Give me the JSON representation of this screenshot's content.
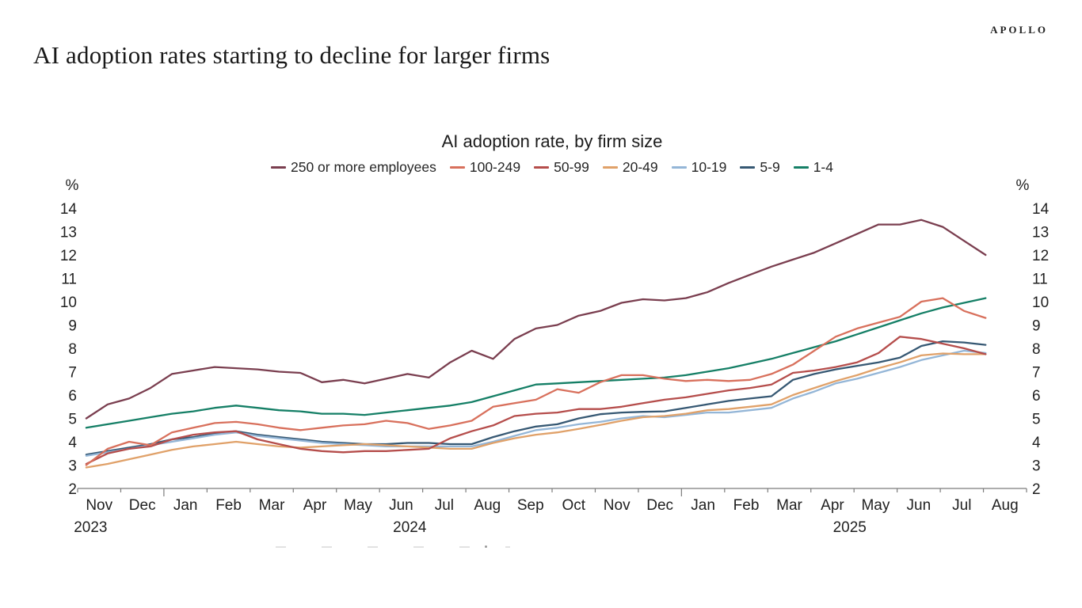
{
  "header": {
    "headline": "AI adoption rates starting to decline for larger firms",
    "brand": "APOLLO"
  },
  "chart_data": {
    "type": "line",
    "title": "AI adoption rate, by firm size",
    "unit": "%",
    "ylim": [
      2,
      14
    ],
    "ytick_step": 1,
    "grid": false,
    "legend_position": "top",
    "x_axis": {
      "months": [
        "Nov",
        "Dec",
        "Jan",
        "Feb",
        "Mar",
        "Apr",
        "May",
        "Jun",
        "Jul",
        "Aug",
        "Sep",
        "Oct",
        "Nov",
        "Dec",
        "Jan",
        "Feb",
        "Mar",
        "Apr",
        "May",
        "Jun",
        "Jul",
        "Aug"
      ],
      "year_labels": [
        {
          "text": "2023",
          "slot": 0.3
        },
        {
          "text": "2024",
          "slot": 7.7
        },
        {
          "text": "2025",
          "slot": 17.9
        }
      ],
      "range_note": "biweekly data, Nov 2023 through late Jul 2025"
    },
    "series": [
      {
        "name": "250 or more employees",
        "color": "#7A3E4F",
        "values": [
          5.0,
          5.6,
          5.85,
          6.3,
          6.9,
          7.05,
          7.2,
          7.15,
          7.1,
          7.0,
          6.95,
          6.55,
          6.65,
          6.5,
          6.7,
          6.9,
          6.75,
          7.4,
          7.9,
          7.55,
          8.4,
          8.85,
          9.0,
          9.4,
          9.6,
          9.95,
          10.1,
          10.05,
          10.15,
          10.4,
          10.8,
          11.15,
          11.5,
          11.8,
          12.1,
          12.5,
          12.9,
          13.3,
          13.3,
          13.5,
          13.2,
          12.6,
          12.0
        ]
      },
      {
        "name": "100-249",
        "color": "#D8705C",
        "values": [
          3.0,
          3.7,
          4.0,
          3.85,
          4.4,
          4.6,
          4.8,
          4.85,
          4.75,
          4.6,
          4.5,
          4.6,
          4.7,
          4.75,
          4.9,
          4.8,
          4.55,
          4.7,
          4.9,
          5.5,
          5.65,
          5.8,
          6.25,
          6.1,
          6.55,
          6.85,
          6.85,
          6.7,
          6.6,
          6.65,
          6.6,
          6.65,
          6.9,
          7.3,
          7.9,
          8.5,
          8.85,
          9.1,
          9.35,
          10.0,
          10.15,
          9.6,
          9.3
        ]
      },
      {
        "name": "50-99",
        "color": "#B54D4B",
        "values": [
          3.05,
          3.5,
          3.7,
          3.8,
          4.1,
          4.3,
          4.4,
          4.45,
          4.1,
          3.9,
          3.7,
          3.6,
          3.55,
          3.6,
          3.6,
          3.65,
          3.7,
          4.15,
          4.45,
          4.7,
          5.1,
          5.2,
          5.25,
          5.4,
          5.4,
          5.5,
          5.65,
          5.8,
          5.9,
          6.05,
          6.2,
          6.3,
          6.45,
          6.95,
          7.05,
          7.2,
          7.4,
          7.8,
          8.5,
          8.4,
          8.2,
          8.0,
          7.75
        ]
      },
      {
        "name": "20-49",
        "color": "#E0A169",
        "values": [
          2.9,
          3.05,
          3.25,
          3.45,
          3.65,
          3.8,
          3.9,
          4.0,
          3.9,
          3.8,
          3.75,
          3.8,
          3.85,
          3.9,
          3.85,
          3.8,
          3.75,
          3.7,
          3.7,
          3.95,
          4.15,
          4.3,
          4.4,
          4.55,
          4.72,
          4.9,
          5.05,
          5.1,
          5.2,
          5.35,
          5.4,
          5.5,
          5.6,
          6.0,
          6.3,
          6.6,
          6.85,
          7.15,
          7.4,
          7.7,
          7.78,
          7.75,
          7.75
        ]
      },
      {
        "name": "10-19",
        "color": "#94B6D7",
        "values": [
          3.4,
          3.55,
          3.7,
          3.85,
          4.0,
          4.15,
          4.3,
          4.4,
          4.25,
          4.15,
          4.05,
          3.95,
          3.9,
          3.85,
          3.8,
          3.8,
          3.8,
          3.8,
          3.8,
          4.0,
          4.25,
          4.5,
          4.6,
          4.75,
          4.85,
          5.0,
          5.1,
          5.05,
          5.15,
          5.25,
          5.25,
          5.35,
          5.45,
          5.85,
          6.15,
          6.5,
          6.7,
          6.95,
          7.2,
          7.5,
          7.7,
          7.9,
          7.8
        ]
      },
      {
        "name": "5-9",
        "color": "#365873",
        "values": [
          3.45,
          3.6,
          3.75,
          3.9,
          4.1,
          4.2,
          4.35,
          4.45,
          4.3,
          4.2,
          4.1,
          4.0,
          3.95,
          3.9,
          3.9,
          3.95,
          3.95,
          3.9,
          3.9,
          4.2,
          4.45,
          4.65,
          4.75,
          5.0,
          5.18,
          5.25,
          5.28,
          5.3,
          5.45,
          5.6,
          5.75,
          5.85,
          5.95,
          6.65,
          6.9,
          7.1,
          7.25,
          7.4,
          7.6,
          8.1,
          8.3,
          8.25,
          8.15
        ]
      },
      {
        "name": "1-4",
        "color": "#157F66",
        "values": [
          4.6,
          4.75,
          4.9,
          5.05,
          5.2,
          5.3,
          5.45,
          5.55,
          5.45,
          5.35,
          5.3,
          5.2,
          5.2,
          5.15,
          5.25,
          5.35,
          5.45,
          5.55,
          5.7,
          5.95,
          6.2,
          6.45,
          6.5,
          6.55,
          6.6,
          6.65,
          6.7,
          6.75,
          6.85,
          7.0,
          7.15,
          7.35,
          7.55,
          7.8,
          8.05,
          8.3,
          8.6,
          8.9,
          9.2,
          9.5,
          9.75,
          9.95,
          10.15
        ]
      }
    ]
  }
}
